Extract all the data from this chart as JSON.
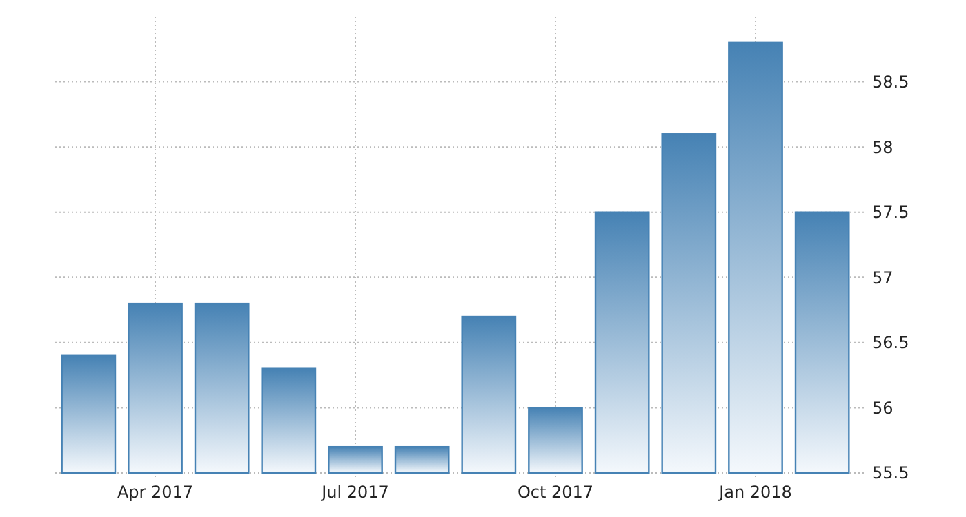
{
  "chart_data": {
    "type": "bar",
    "categories": [
      null,
      "Apr 2017",
      null,
      null,
      "Jul 2017",
      null,
      null,
      "Oct 2017",
      null,
      null,
      "Jan 2018",
      null
    ],
    "values": [
      56.4,
      56.8,
      56.8,
      56.3,
      55.7,
      55.7,
      56.7,
      56.0,
      57.5,
      58.1,
      58.8,
      57.5
    ],
    "color": "#4682b4",
    "ylim": [
      55.5,
      59
    ],
    "yticks": [
      55.5,
      56,
      56.5,
      57,
      57.5,
      58,
      58.5
    ],
    "grid": true
  }
}
